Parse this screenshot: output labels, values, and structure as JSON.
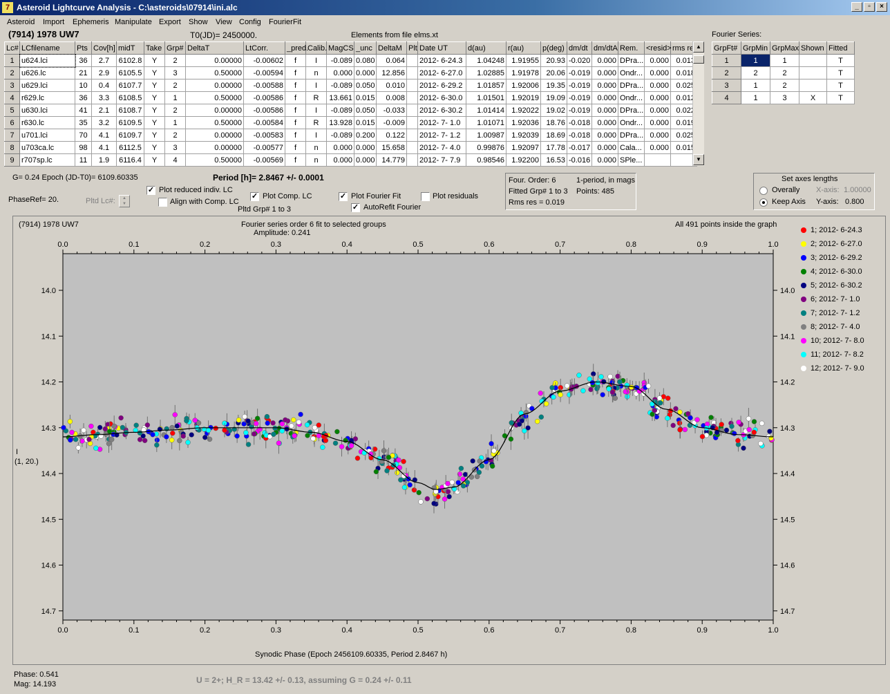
{
  "window": {
    "title": "Asteroid Lightcurve Analysis - C:\\asteroids\\07914\\ini.alc",
    "min": "_",
    "max": "▫",
    "close": "×"
  },
  "menu": [
    "Asteroid",
    "Import",
    "Ephemeris",
    "Manipulate",
    "Export",
    "Show",
    "View",
    "Config",
    "FourierFit"
  ],
  "header": {
    "asteroid": "(7914) 1978 UW7",
    "t0": "T0(JD)= 2450000.",
    "elements": "Elements from file elms.xt",
    "fourier_series": "Fourier Series:"
  },
  "lc_table": {
    "columns": [
      "Lc#",
      "LCfilename",
      "Pts",
      "Cov[h]",
      "midT",
      "Take",
      "Grp#",
      "DeltaT",
      "LtCorr.",
      "_pred.",
      "Calib.",
      "MagCS",
      "_unc",
      "DeltaM",
      "Plt",
      "Date UT",
      "d(au)",
      "r(au)",
      "p(deg)",
      "dm/dt",
      "dm/dtA",
      "Rem.",
      "<resid>",
      "rms res"
    ],
    "rows": [
      [
        "1",
        "u624.lci",
        "36",
        "2.7",
        "6102.8",
        "Y",
        "2",
        "0.00000",
        "-0.00602",
        "f",
        "I",
        "-0.089",
        "0.080",
        "0.064",
        "",
        "2012- 6-24.3",
        "1.04248",
        "1.91955",
        "20.93",
        "-0.020",
        "0.000",
        "DPra...",
        "0.000",
        "0.013"
      ],
      [
        "2",
        "u626.lc",
        "21",
        "2.9",
        "6105.5",
        "Y",
        "3",
        "0.50000",
        "-0.00594",
        "f",
        "n",
        "0.000",
        "0.000",
        "12.856",
        "",
        "2012- 6-27.0",
        "1.02885",
        "1.91978",
        "20.06",
        "-0.019",
        "0.000",
        "Ondr...",
        "0.000",
        "0.018"
      ],
      [
        "3",
        "u629.lci",
        "10",
        "0.4",
        "6107.7",
        "Y",
        "2",
        "0.00000",
        "-0.00588",
        "f",
        "I",
        "-0.089",
        "0.050",
        "0.010",
        "",
        "2012- 6-29.2",
        "1.01857",
        "1.92006",
        "19.35",
        "-0.019",
        "0.000",
        "DPra...",
        "0.000",
        "0.025"
      ],
      [
        "4",
        "r629.lc",
        "36",
        "3.3",
        "6108.5",
        "Y",
        "1",
        "0.50000",
        "-0.00586",
        "f",
        "R",
        "13.661",
        "0.015",
        "0.008",
        "",
        "2012- 6-30.0",
        "1.01501",
        "1.92019",
        "19.09",
        "-0.019",
        "0.000",
        "Ondr...",
        "0.000",
        "0.012"
      ],
      [
        "5",
        "u630.lci",
        "41",
        "2.1",
        "6108.7",
        "Y",
        "2",
        "0.00000",
        "-0.00586",
        "f",
        "I",
        "-0.089",
        "0.050",
        "-0.033",
        "",
        "2012- 6-30.2",
        "1.01414",
        "1.92022",
        "19.02",
        "-0.019",
        "0.000",
        "DPra...",
        "0.000",
        "0.022"
      ],
      [
        "6",
        "r630.lc",
        "35",
        "3.2",
        "6109.5",
        "Y",
        "1",
        "0.50000",
        "-0.00584",
        "f",
        "R",
        "13.928",
        "0.015",
        "-0.009",
        "",
        "2012- 7- 1.0",
        "1.01071",
        "1.92036",
        "18.76",
        "-0.018",
        "0.000",
        "Ondr...",
        "0.000",
        "0.019"
      ],
      [
        "7",
        "u701.lci",
        "70",
        "4.1",
        "6109.7",
        "Y",
        "2",
        "0.00000",
        "-0.00583",
        "f",
        "I",
        "-0.089",
        "0.200",
        "0.122",
        "",
        "2012- 7- 1.2",
        "1.00987",
        "1.92039",
        "18.69",
        "-0.018",
        "0.000",
        "DPra...",
        "0.000",
        "0.025"
      ],
      [
        "8",
        "u703ca.lc",
        "98",
        "4.1",
        "6112.5",
        "Y",
        "3",
        "0.00000",
        "-0.00577",
        "f",
        "n",
        "0.000",
        "0.000",
        "15.658",
        "",
        "2012- 7- 4.0",
        "0.99876",
        "1.92097",
        "17.78",
        "-0.017",
        "0.000",
        "Cala...",
        "0.000",
        "0.015"
      ],
      [
        "9",
        "r707sp.lc",
        "11",
        "1.9",
        "6116.4",
        "Y",
        "4",
        "0.50000",
        "-0.00569",
        "f",
        "n",
        "0.000",
        "0.000",
        "14.779",
        "",
        "2012- 7- 7.9",
        "0.98546",
        "1.92200",
        "16.53",
        "-0.016",
        "0.000",
        "SPle...",
        "",
        ""
      ]
    ]
  },
  "fourier_table": {
    "columns": [
      "GrpFt#",
      "GrpMin",
      "GrpMax",
      "Shown",
      "Fitted"
    ],
    "rows": [
      [
        "1",
        "1",
        "1",
        "",
        "T"
      ],
      [
        "2",
        "2",
        "2",
        "",
        "T"
      ],
      [
        "3",
        "1",
        "2",
        "",
        "T"
      ],
      [
        "4",
        "1",
        "3",
        "X",
        "T"
      ]
    ]
  },
  "controls": {
    "g_line": "G= 0.24   Epoch (JD-T0)= 6109.60335",
    "period": "Period [h]= 2.8467 +/- 0.0001",
    "phaseref": "PhaseRef= 20.",
    "pltd_lc": "Pltd Lc#:",
    "plot_reduced": "Plot reduced indiv. LC",
    "align_comp": "Align with Comp. LC",
    "plot_comp": "Plot Comp. LC",
    "pltd_grp": "Pltd Grp#  1   to   3",
    "plot_fourier": "Plot Fourier Fit",
    "autorefit": "AutoRefit Fourier",
    "plot_residuals": "Plot residuals",
    "check_mark": "✓",
    "info": {
      "four_order": "Four. Order:  6",
      "one_period": "1-period, in mags",
      "fitted": "Fitted Grp# 1 to 3",
      "points": "Points: 485",
      "rms": "Rms res     = 0.019"
    },
    "axes": {
      "title": "Set axes lengths",
      "overally": "Overally",
      "keep_axis": "Keep Axis",
      "x_label": "X-axis:",
      "x_value": "1.00000",
      "y_label": "Y-axis:",
      "y_value": "0.800"
    }
  },
  "graph": {
    "obj": "(7914) 1978 UW7",
    "fit_title": "Fourier series order 6 fit to selected groups",
    "amplitude": "Amplitude: 0.241",
    "points_inside": "All 491 points inside the graph",
    "ylab1": "I",
    "ylab2": "(1, 20.)",
    "xlabel": "Synodic Phase (Epoch 2456109.60335, Period 2.8467 h)"
  },
  "chart_data": {
    "type": "scatter",
    "xlim": [
      0.0,
      1.0
    ],
    "ylim": [
      14.72,
      13.92
    ],
    "xticks": [
      "0.0",
      "0.1",
      "0.2",
      "0.3",
      "0.4",
      "0.5",
      "0.6",
      "0.7",
      "0.8",
      "0.9",
      "1.0"
    ],
    "yticks": [
      "14.0",
      "14.1",
      "14.2",
      "14.3",
      "14.4",
      "14.5",
      "14.6",
      "14.7"
    ],
    "fit_curve": {
      "x": [
        0.0,
        0.05,
        0.1,
        0.15,
        0.2,
        0.25,
        0.3,
        0.35,
        0.4,
        0.45,
        0.5,
        0.525,
        0.55,
        0.6,
        0.65,
        0.7,
        0.75,
        0.8,
        0.85,
        0.9,
        0.95,
        1.0
      ],
      "y": [
        14.32,
        14.315,
        14.31,
        14.305,
        14.3,
        14.3,
        14.3,
        14.31,
        14.33,
        14.37,
        14.42,
        14.435,
        14.43,
        14.37,
        14.27,
        14.22,
        14.2,
        14.21,
        14.26,
        14.3,
        14.315,
        14.32
      ]
    },
    "series": [
      {
        "name": "1; 2012- 6-24.3",
        "color": "#ff0000"
      },
      {
        "name": "2; 2012- 6-27.0",
        "color": "#ffff00"
      },
      {
        "name": "3; 2012- 6-29.2",
        "color": "#0000ff"
      },
      {
        "name": "4; 2012- 6-30.0",
        "color": "#008000"
      },
      {
        "name": "5; 2012- 6-30.2",
        "color": "#000080"
      },
      {
        "name": "6; 2012- 7- 1.0",
        "color": "#800080"
      },
      {
        "name": "7; 2012- 7- 1.2",
        "color": "#008080"
      },
      {
        "name": "8; 2012- 7- 4.0",
        "color": "#808080"
      },
      {
        "name": "10; 2012- 7- 8.0",
        "color": "#ff00ff"
      },
      {
        "name": "11; 2012- 7- 8.2",
        "color": "#00ffff"
      },
      {
        "name": "12; 2012- 7- 9.0",
        "color": "#ffffff"
      }
    ]
  },
  "status": {
    "phase": "Phase:  0.541",
    "mag": "Mag:    14.193",
    "result": "U = 2+; H_R = 13.42 +/- 0.13, assuming G = 0.24 +/- 0.11"
  }
}
